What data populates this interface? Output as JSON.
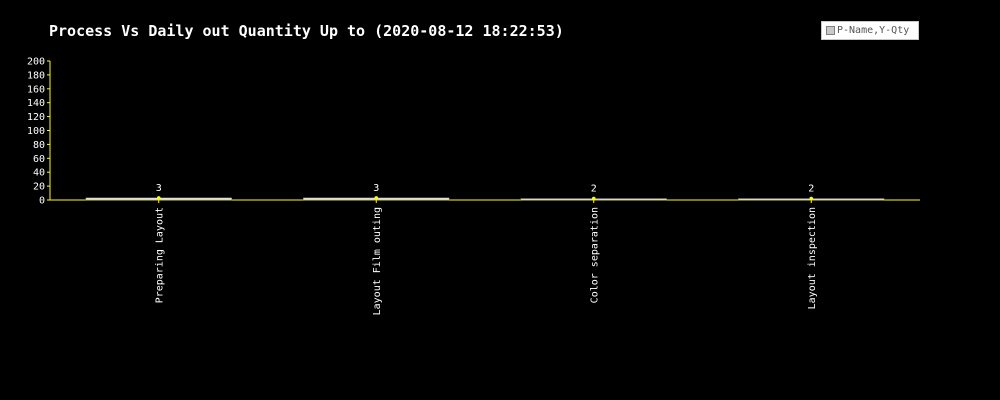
{
  "chart_data": {
    "type": "bar",
    "title": "Process Vs Daily out Quantity Up to (2020-08-12 18:22:53)",
    "categories": [
      "Preparing Layout",
      "Layout Film outing",
      "Color separation",
      "Layout inspection"
    ],
    "series": [
      {
        "name": "P-Name,Y-Qty",
        "values": [
          3,
          3,
          2,
          2
        ]
      }
    ],
    "ylim": [
      0,
      200
    ],
    "yticks": [
      0,
      20,
      40,
      60,
      80,
      100,
      120,
      140,
      160,
      180,
      200
    ],
    "grid": false,
    "legend": "top-right",
    "colors": {
      "background": "#000000",
      "axis": "#ffff00",
      "bar_fill": "#eeeedd",
      "bar_edge": "#999988",
      "marker": "#ffff00",
      "text": "#ffffff"
    }
  }
}
